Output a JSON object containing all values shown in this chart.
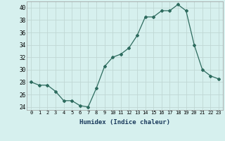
{
  "x": [
    0,
    1,
    2,
    3,
    4,
    5,
    6,
    7,
    8,
    9,
    10,
    11,
    12,
    13,
    14,
    15,
    16,
    17,
    18,
    19,
    20,
    21,
    22,
    23
  ],
  "y": [
    28,
    27.5,
    27.5,
    26.5,
    25,
    25,
    24.2,
    24,
    27,
    30.5,
    32,
    32.5,
    33.5,
    35.5,
    38.5,
    38.5,
    39.5,
    39.5,
    40.5,
    39.5,
    34,
    30,
    29,
    28.5
  ],
  "line_color": "#2d6b5e",
  "marker": "D",
  "marker_size": 2,
  "bg_color": "#d6f0ee",
  "grid_color": "#c0d8d4",
  "xlabel": "Humidex (Indice chaleur)",
  "xlim": [
    -0.5,
    23.5
  ],
  "ylim": [
    23.5,
    41
  ],
  "yticks": [
    24,
    26,
    28,
    30,
    32,
    34,
    36,
    38,
    40
  ],
  "xticks": [
    0,
    1,
    2,
    3,
    4,
    5,
    6,
    7,
    8,
    9,
    10,
    11,
    12,
    13,
    14,
    15,
    16,
    17,
    18,
    19,
    20,
    21,
    22,
    23
  ]
}
